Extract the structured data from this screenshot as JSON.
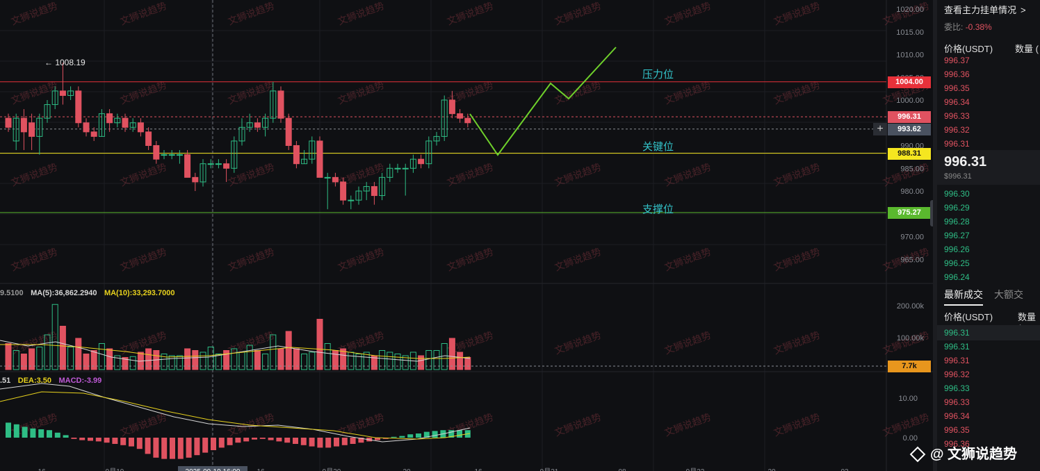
{
  "price_axis": {
    "ticks": [
      "1020.00",
      "1015.00",
      "1010.00",
      "1005.00",
      "1000.00",
      "990.00",
      "985.00",
      "980.00",
      "975.00",
      "970.00",
      "965.00"
    ],
    "tags": [
      {
        "label": "1004.00",
        "value": 1004.0,
        "bg": "#e8313a",
        "fg": "#ffffff"
      },
      {
        "label": "996.31",
        "value": 996.31,
        "bg": "#e05260",
        "fg": "#ffffff"
      },
      {
        "label": "993.62",
        "value": 993.62,
        "bg": "#4a5260",
        "fg": "#ffffff"
      },
      {
        "label": "988.31",
        "value": 988.31,
        "bg": "#f5e620",
        "fg": "#111111"
      },
      {
        "label": "975.27",
        "value": 975.27,
        "bg": "#5ab92e",
        "fg": "#ffffff"
      }
    ]
  },
  "levels": {
    "resistance": {
      "label": "压力位",
      "value": 1004.0,
      "color": "#e8313a"
    },
    "key": {
      "label": "关键位",
      "value": 988.31,
      "color": "#f5e620"
    },
    "support": {
      "label": "支撑位",
      "value": 975.27,
      "color": "#5ab92e"
    }
  },
  "high_marker": "← 1008.19",
  "volume": {
    "ticks": [
      "200.00k",
      "100.00k"
    ],
    "current_tag": "7.7k",
    "ma_left": "9.5100",
    "ma5": "MA(5):36,862.2940",
    "ma10": "MA(10):33,293.7000"
  },
  "macd": {
    "ticks": [
      "10.00",
      "0.00"
    ],
    "dif": ".51",
    "dea": "DEA:3.50",
    "macd": "MACD:-3.99"
  },
  "x_labels": [
    "16",
    "9月19",
    "2025-09-19 16:00",
    "16",
    "9月20",
    "20",
    "16",
    "9月21",
    "08",
    "9月22",
    "20",
    "03"
  ],
  "watermark_text": "文狮说趋势",
  "orderbook": {
    "title": "查看主力挂单情况",
    "ratio_label": "委比:",
    "ratio_value": "-0.38%",
    "col_price": "价格(USDT)",
    "col_qty": "数量 (",
    "asks": [
      "996.37",
      "996.36",
      "996.35",
      "996.34",
      "996.33",
      "996.32",
      "996.31"
    ],
    "last_price": "996.31",
    "last_price_usd": "$996.31",
    "bids": [
      "996.30",
      "996.29",
      "996.28",
      "996.27",
      "996.26",
      "996.25",
      "996.24"
    ],
    "trades_tabs": [
      "最新成交",
      "大额交"
    ],
    "col_price2": "价格(USDT)",
    "col_qty2": "数量 (",
    "trades": [
      {
        "p": "996.31",
        "side": "bid"
      },
      {
        "p": "996.31",
        "side": "bid"
      },
      {
        "p": "996.31",
        "side": "ask"
      },
      {
        "p": "996.32",
        "side": "ask"
      },
      {
        "p": "996.33",
        "side": "bid"
      },
      {
        "p": "996.33",
        "side": "ask"
      },
      {
        "p": "996.34",
        "side": "ask"
      },
      {
        "p": "996.35",
        "side": "ask"
      },
      {
        "p": "996.36",
        "side": "ask"
      }
    ]
  },
  "logo_text": "@ 文狮说趋势",
  "colors": {
    "up": "#2ebd85",
    "down": "#e05260",
    "accent_green": "#6fd12b",
    "ma_yellow": "#e8d21d"
  }
}
